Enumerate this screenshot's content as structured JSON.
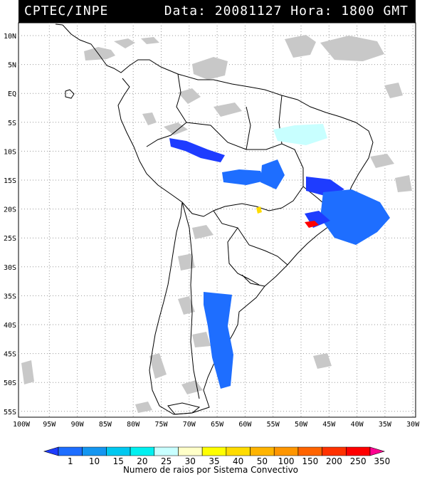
{
  "header": {
    "org": "CPTEC/INPE",
    "datetime": "Data: 20081127 Hora: 1800 GMT"
  },
  "map": {
    "lat_range": [
      -56,
      12
    ],
    "lon_range": [
      -100,
      -26
    ],
    "lat_ticks": [
      "10N",
      "5N",
      "EQ",
      "5S",
      "10S",
      "15S",
      "20S",
      "25S",
      "30S",
      "35S",
      "40S",
      "45S",
      "50S",
      "55S"
    ],
    "lon_ticks": [
      "100W",
      "95W",
      "90W",
      "85W",
      "80W",
      "75W",
      "70W",
      "65W",
      "60W",
      "55W",
      "50W",
      "45W",
      "40W",
      "35W",
      "30W"
    ],
    "grid": true,
    "cloud_color": "#c8c8c8"
  },
  "legend": {
    "title": "Numero de raios por Sistema Convectivo",
    "labels": [
      "1",
      "10",
      "15",
      "20",
      "25",
      "30",
      "35",
      "40",
      "50",
      "100",
      "150",
      "200",
      "250",
      "350"
    ],
    "colors": [
      "#1e3cff",
      "#1e6eff",
      "#1496f0",
      "#00c8f0",
      "#00f0f0",
      "#c8ffff",
      "#ffffc8",
      "#ffff00",
      "#ffdc00",
      "#ffb400",
      "#ff9600",
      "#ff6400",
      "#ff3200",
      "#ff0000",
      "#ff0090"
    ]
  }
}
